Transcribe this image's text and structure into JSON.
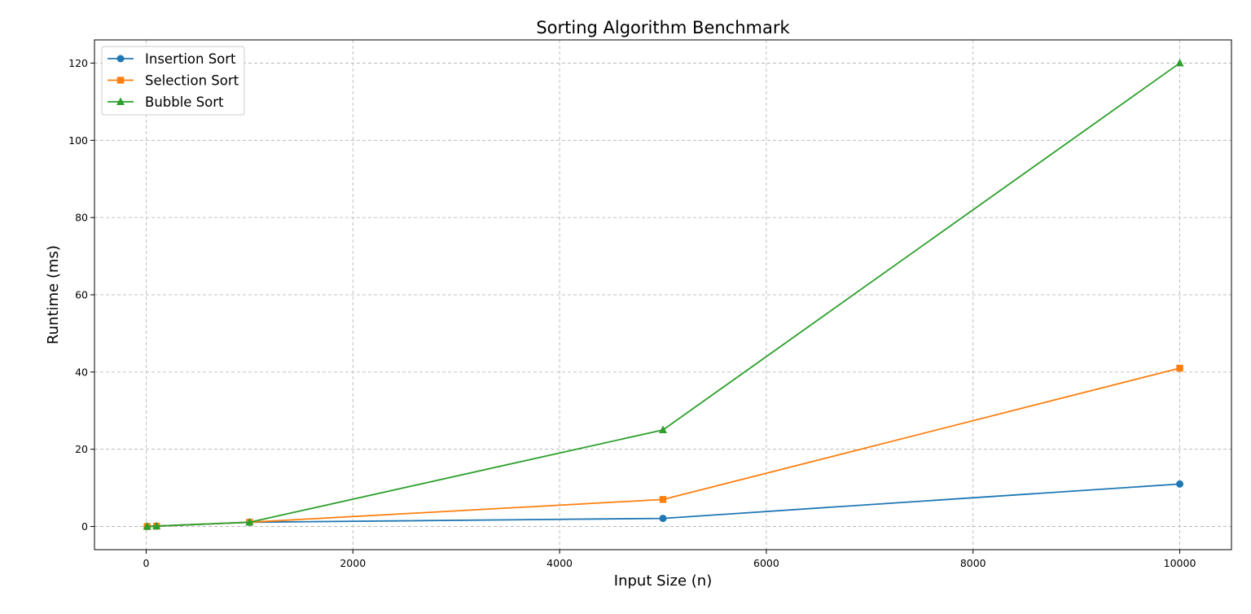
{
  "chart_data": {
    "type": "line",
    "title": "Sorting Algorithm Benchmark",
    "xlabel": "Input Size (n)",
    "ylabel": "Runtime (ms)",
    "x": [
      10,
      100,
      1000,
      5000,
      10000
    ],
    "series": [
      {
        "name": "Insertion Sort",
        "values": [
          0.0,
          0.1,
          1.1,
          2.1,
          11.0
        ],
        "color": "#1f77b4",
        "marker": "circle"
      },
      {
        "name": "Selection Sort",
        "values": [
          0.0,
          0.1,
          1.1,
          7.0,
          41.0
        ],
        "color": "#ff7f0e",
        "marker": "square"
      },
      {
        "name": "Bubble Sort",
        "values": [
          0.0,
          0.1,
          1.1,
          25.0,
          120.0
        ],
        "color": "#2ca02c",
        "marker": "triangle"
      }
    ],
    "xlim": [
      -500,
      10500
    ],
    "ylim": [
      -6,
      126
    ],
    "xticks": [
      0,
      2000,
      4000,
      6000,
      8000,
      10000
    ],
    "xtick_labels": [
      "0",
      "2000",
      "4000",
      "6000",
      "8000",
      "10000"
    ],
    "yticks": [
      0,
      20,
      40,
      60,
      80,
      100,
      120
    ],
    "ytick_labels": [
      "0",
      "20",
      "40",
      "60",
      "80",
      "100",
      "120"
    ],
    "grid": true,
    "legend_position": "top-left"
  }
}
